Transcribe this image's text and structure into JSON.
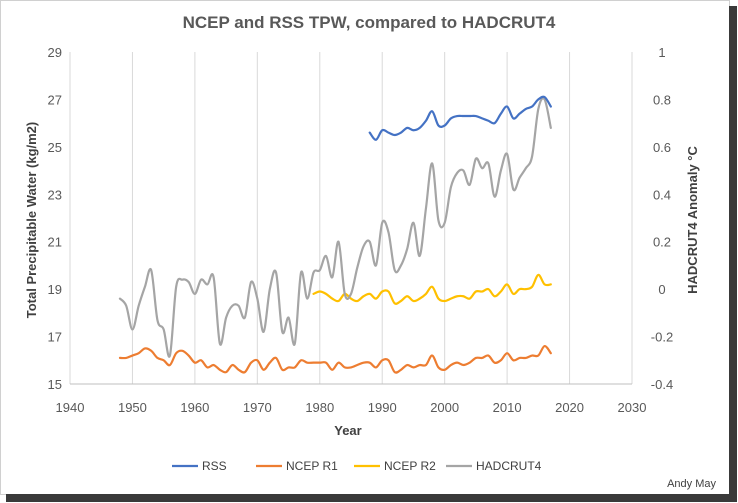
{
  "chart_data": {
    "type": "line",
    "title": "NCEP and RSS TPW, compared to HADCRUT4",
    "xlabel": "Year",
    "ylabel": "Total Precipitable Water (kg/m2)",
    "y2label": "HADCRUT4 Anomaly °C",
    "xlim": [
      1940,
      2030
    ],
    "ylim": [
      15,
      29
    ],
    "y2lim": [
      -0.4,
      1.0
    ],
    "x_ticks": [
      "1940",
      "1950",
      "1960",
      "1970",
      "1980",
      "1990",
      "2000",
      "2010",
      "2020",
      "2030"
    ],
    "y_ticks": [
      "15",
      "17",
      "19",
      "21",
      "23",
      "25",
      "27",
      "29"
    ],
    "y2_ticks": [
      "-0.4",
      "-0.2",
      "0",
      "0.2",
      "0.4",
      "0.6",
      "0.8",
      "1"
    ],
    "grid": "vertical",
    "legend_position": "bottom",
    "credit": "Andy May",
    "series": [
      {
        "name": "RSS",
        "axis": "left",
        "color": "#4472C4",
        "x": [
          1988,
          1989,
          1990,
          1991,
          1992,
          1993,
          1994,
          1995,
          1996,
          1997,
          1998,
          1999,
          2000,
          2001,
          2002,
          2003,
          2004,
          2005,
          2006,
          2007,
          2008,
          2009,
          2010,
          2011,
          2012,
          2013,
          2014,
          2015,
          2016,
          2017
        ],
        "values": [
          25.6,
          25.3,
          25.7,
          25.6,
          25.5,
          25.6,
          25.8,
          25.7,
          25.8,
          26.1,
          26.5,
          25.9,
          25.9,
          26.2,
          26.3,
          26.3,
          26.3,
          26.3,
          26.2,
          26.1,
          26.0,
          26.4,
          26.7,
          26.2,
          26.4,
          26.6,
          26.7,
          27.0,
          27.1,
          26.7
        ]
      },
      {
        "name": "NCEP R1",
        "axis": "left",
        "color": "#ED7D31",
        "x": [
          1948,
          1949,
          1950,
          1951,
          1952,
          1953,
          1954,
          1955,
          1956,
          1957,
          1958,
          1959,
          1960,
          1961,
          1962,
          1963,
          1964,
          1965,
          1966,
          1967,
          1968,
          1969,
          1970,
          1971,
          1972,
          1973,
          1974,
          1975,
          1976,
          1977,
          1978,
          1979,
          1980,
          1981,
          1982,
          1983,
          1984,
          1985,
          1986,
          1987,
          1988,
          1989,
          1990,
          1991,
          1992,
          1993,
          1994,
          1995,
          1996,
          1997,
          1998,
          1999,
          2000,
          2001,
          2002,
          2003,
          2004,
          2005,
          2006,
          2007,
          2008,
          2009,
          2010,
          2011,
          2012,
          2013,
          2014,
          2015,
          2016,
          2017
        ],
        "values": [
          16.1,
          16.1,
          16.2,
          16.3,
          16.5,
          16.4,
          16.1,
          16.0,
          15.8,
          16.3,
          16.4,
          16.2,
          15.9,
          16.0,
          15.7,
          15.8,
          15.6,
          15.5,
          15.8,
          15.6,
          15.5,
          15.9,
          16.0,
          15.6,
          15.9,
          16.1,
          15.6,
          15.7,
          15.7,
          16.0,
          15.9,
          15.9,
          15.9,
          15.9,
          15.6,
          15.9,
          15.7,
          15.7,
          15.8,
          15.9,
          15.9,
          15.7,
          16.0,
          16.0,
          15.5,
          15.6,
          15.8,
          15.7,
          15.8,
          15.8,
          16.2,
          15.7,
          15.6,
          15.8,
          15.9,
          15.8,
          15.9,
          16.1,
          16.1,
          16.2,
          15.9,
          16.0,
          16.3,
          16.0,
          16.1,
          16.1,
          16.2,
          16.2,
          16.6,
          16.3
        ]
      },
      {
        "name": "NCEP R2",
        "axis": "left",
        "color": "#FFC000",
        "x": [
          1979,
          1980,
          1981,
          1982,
          1983,
          1984,
          1985,
          1986,
          1987,
          1988,
          1989,
          1990,
          1991,
          1992,
          1993,
          1994,
          1995,
          1996,
          1997,
          1998,
          1999,
          2000,
          2001,
          2002,
          2003,
          2004,
          2005,
          2006,
          2007,
          2008,
          2009,
          2010,
          2011,
          2012,
          2013,
          2014,
          2015,
          2016,
          2017
        ],
        "values": [
          18.8,
          18.9,
          18.8,
          18.6,
          18.5,
          18.8,
          18.6,
          18.5,
          18.7,
          18.8,
          18.6,
          18.9,
          18.9,
          18.4,
          18.5,
          18.7,
          18.5,
          18.6,
          18.8,
          19.1,
          18.6,
          18.5,
          18.6,
          18.7,
          18.7,
          18.6,
          18.9,
          18.9,
          19.0,
          18.7,
          18.9,
          19.2,
          18.8,
          19.0,
          19.0,
          19.1,
          19.6,
          19.2,
          19.2
        ]
      },
      {
        "name": "HADCRUT4",
        "axis": "right",
        "color": "#A5A5A5",
        "x": [
          1948,
          1949,
          1950,
          1951,
          1952,
          1953,
          1954,
          1955,
          1956,
          1957,
          1958,
          1959,
          1960,
          1961,
          1962,
          1963,
          1964,
          1965,
          1966,
          1967,
          1968,
          1969,
          1970,
          1971,
          1972,
          1973,
          1974,
          1975,
          1976,
          1977,
          1978,
          1979,
          1980,
          1981,
          1982,
          1983,
          1984,
          1985,
          1986,
          1987,
          1988,
          1989,
          1990,
          1991,
          1992,
          1993,
          1994,
          1995,
          1996,
          1997,
          1998,
          1999,
          2000,
          2001,
          2002,
          2003,
          2004,
          2005,
          2006,
          2007,
          2008,
          2009,
          2010,
          2011,
          2012,
          2013,
          2014,
          2015,
          2016,
          2017
        ],
        "values": [
          -0.04,
          -0.07,
          -0.17,
          -0.07,
          0.01,
          0.08,
          -0.13,
          -0.17,
          -0.28,
          0.01,
          0.04,
          0.03,
          -0.02,
          0.04,
          0.02,
          0.05,
          -0.23,
          -0.12,
          -0.07,
          -0.07,
          -0.12,
          0.03,
          -0.04,
          -0.18,
          0.0,
          0.07,
          -0.18,
          -0.12,
          -0.23,
          0.07,
          -0.04,
          0.07,
          0.08,
          0.14,
          0.05,
          0.2,
          -0.02,
          -0.02,
          0.09,
          0.18,
          0.2,
          0.1,
          0.28,
          0.24,
          0.08,
          0.1,
          0.17,
          0.28,
          0.14,
          0.34,
          0.53,
          0.29,
          0.28,
          0.43,
          0.49,
          0.5,
          0.44,
          0.55,
          0.51,
          0.53,
          0.39,
          0.5,
          0.57,
          0.42,
          0.47,
          0.51,
          0.56,
          0.76,
          0.8,
          0.68
        ]
      }
    ]
  }
}
